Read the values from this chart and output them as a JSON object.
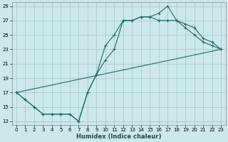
{
  "title": "",
  "xlabel": "Humidex (Indice chaleur)",
  "bg_color": "#cce8e8",
  "grid_color": "#aacccc",
  "line_color": "#1a6b6b",
  "xlim": [
    -0.5,
    23.5
  ],
  "ylim": [
    12.5,
    29.5
  ],
  "xticks": [
    0,
    1,
    2,
    3,
    4,
    5,
    6,
    7,
    8,
    9,
    10,
    11,
    12,
    13,
    14,
    15,
    16,
    17,
    18,
    19,
    20,
    21,
    22,
    23
  ],
  "yticks": [
    13,
    15,
    17,
    19,
    21,
    23,
    25,
    27,
    29
  ],
  "line1_x": [
    0,
    1,
    2,
    3,
    4,
    5,
    6,
    7,
    8,
    9,
    10,
    11,
    12,
    13,
    14,
    15,
    16,
    17,
    18,
    19,
    20,
    21,
    22,
    23
  ],
  "line1_y": [
    17,
    16,
    15,
    14,
    14,
    14,
    14,
    13,
    17,
    19.5,
    23.5,
    25,
    27,
    27,
    27.5,
    27.5,
    28,
    29,
    27,
    26,
    25,
    24,
    23.5,
    23
  ],
  "line2_x": [
    0,
    1,
    2,
    3,
    4,
    5,
    6,
    7,
    8,
    9,
    10,
    11,
    12,
    13,
    14,
    15,
    16,
    17,
    18,
    19,
    20,
    21,
    22,
    23
  ],
  "line2_y": [
    17,
    16,
    15,
    14,
    14,
    14,
    14,
    13,
    17,
    19.5,
    21.5,
    23,
    27,
    27,
    27.5,
    27.5,
    27,
    27,
    27,
    26.5,
    26,
    24.5,
    24,
    23
  ],
  "line3_x": [
    0,
    23
  ],
  "line3_y": [
    17,
    23
  ]
}
